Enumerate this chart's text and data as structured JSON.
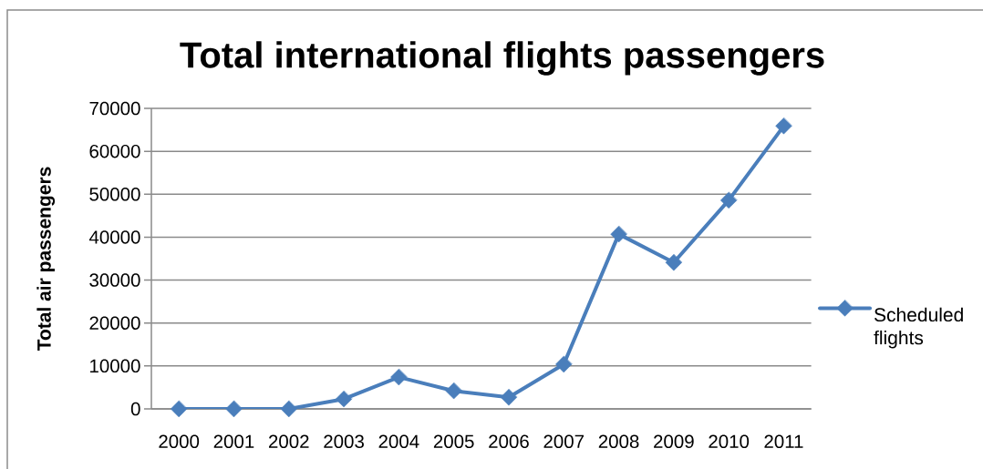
{
  "chart_data": {
    "type": "line",
    "title": "Total international flights passengers",
    "ylabel": "Total air passengers",
    "categories": [
      "2000",
      "2001",
      "2002",
      "2003",
      "2004",
      "2005",
      "2006",
      "2007",
      "2008",
      "2009",
      "2010",
      "2011"
    ],
    "series": [
      {
        "name": "Scheduled flights",
        "color": "#4a7ebb",
        "values": [
          0,
          0,
          0,
          2300,
          7400,
          4200,
          2700,
          10400,
          40700,
          34100,
          48600,
          65900
        ]
      }
    ],
    "ylim": [
      0,
      70000
    ],
    "yticks": [
      0,
      10000,
      20000,
      30000,
      40000,
      50000,
      60000,
      70000
    ],
    "grid": "y",
    "legend": "right",
    "marker": "diamond",
    "line_style": "solid"
  }
}
